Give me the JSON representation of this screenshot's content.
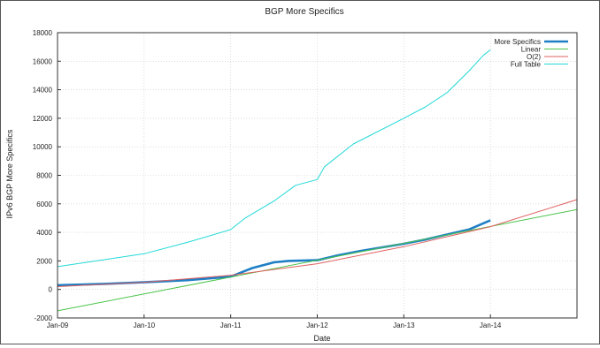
{
  "chart_data": {
    "type": "line",
    "title": "BGP More Specifics",
    "xlabel": "Date",
    "ylabel": "IPv6 BGP More Specifics",
    "xlim": [
      "Jan-09",
      "Jan-15"
    ],
    "ylim": [
      -2000,
      18000
    ],
    "x_ticks": [
      "Jan-09",
      "Jan-10",
      "Jan-11",
      "Jan-12",
      "Jan-13",
      "Jan-14"
    ],
    "y_ticks": [
      -2000,
      0,
      2000,
      4000,
      6000,
      8000,
      10000,
      12000,
      14000,
      16000,
      18000
    ],
    "grid": true,
    "legend_position": "top-right",
    "series": [
      {
        "name": "More Specifics",
        "color": "#1f7fc4",
        "style": "thick",
        "x": [
          "Jan-09",
          "Jul-09",
          "Jan-10",
          "Jul-10",
          "Jan-11",
          "Mar-11",
          "Apr-11",
          "Jul-11",
          "Sep-11",
          "Jan-12",
          "Apr-12",
          "Jul-12",
          "Jan-13",
          "Apr-13",
          "Jul-13",
          "Oct-13",
          "Jan-14"
        ],
        "values": [
          300,
          380,
          500,
          650,
          900,
          1300,
          1500,
          1900,
          2000,
          2050,
          2400,
          2700,
          3200,
          3500,
          3850,
          4200,
          4850
        ]
      },
      {
        "name": "Linear",
        "color": "#4cc44c",
        "style": "thin",
        "x": [
          "Jan-09",
          "Jan-15"
        ],
        "values": [
          -1500,
          5600
        ]
      },
      {
        "name": "O(2)",
        "color": "#e06060",
        "style": "thin",
        "x": [
          "Jan-09",
          "Jan-10",
          "Jan-11",
          "Jan-12",
          "Jan-13",
          "Jan-14",
          "Jan-15"
        ],
        "values": [
          200,
          500,
          1000,
          1800,
          3000,
          4400,
          6300
        ]
      },
      {
        "name": "Full Table",
        "color": "#22d8d8",
        "style": "thin",
        "x": [
          "Jan-09",
          "Jan-10",
          "Jul-10",
          "Jan-11",
          "Mar-11",
          "Jul-11",
          "Oct-11",
          "Jan-12",
          "Feb-12",
          "Jun-12",
          "Jan-13",
          "Apr-13",
          "Jul-13",
          "Oct-13",
          "Dec-13",
          "Jan-14"
        ],
        "values": [
          1600,
          2500,
          3300,
          4200,
          5000,
          6200,
          7300,
          7700,
          8600,
          10200,
          12000,
          12800,
          13800,
          15300,
          16400,
          16800
        ]
      }
    ]
  }
}
